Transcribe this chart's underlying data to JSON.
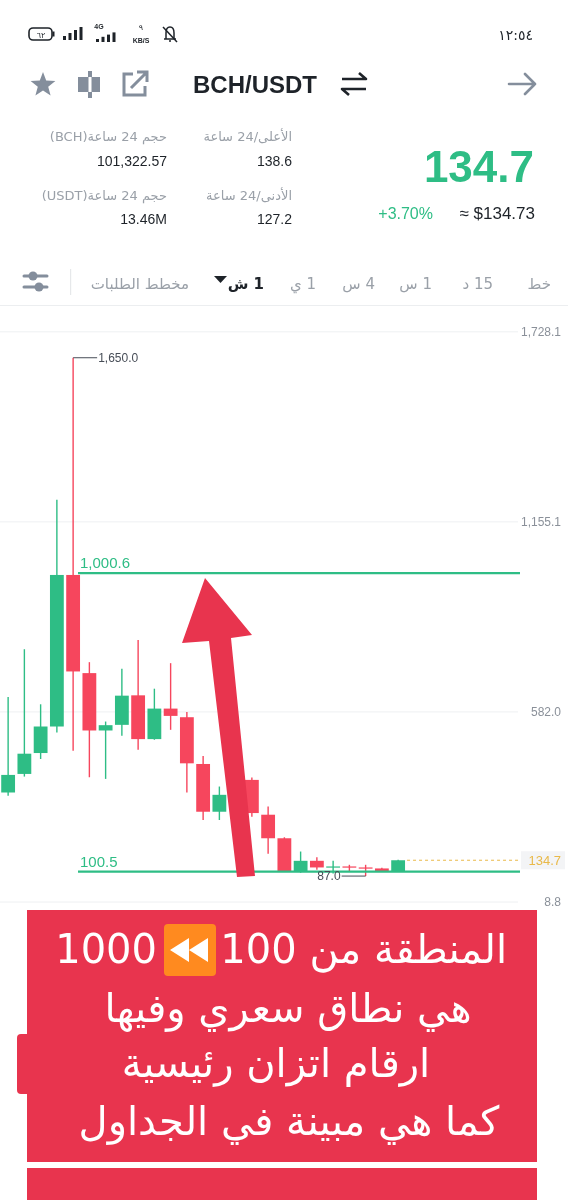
{
  "chart_data": {
    "type": "candlestick",
    "title": "BCH/USDT",
    "categories": [
      null,
      null,
      null,
      null,
      null,
      null,
      null,
      null,
      null,
      null,
      null,
      null,
      null,
      null,
      null,
      null,
      null,
      null,
      null,
      null,
      null,
      null,
      null,
      null,
      null,
      null,
      null,
      null,
      null,
      null,
      null,
      null
    ],
    "ohlc": [
      [
        339,
        627,
        329,
        392
      ],
      [
        395,
        771,
        387,
        456
      ],
      [
        458,
        605,
        440,
        538
      ],
      [
        538,
        1222,
        520,
        995
      ],
      [
        995,
        1650.0,
        465,
        704
      ],
      [
        699,
        732,
        385,
        526
      ],
      [
        526,
        553,
        380,
        542
      ],
      [
        543,
        712,
        510,
        631
      ],
      [
        632,
        799,
        468,
        500
      ],
      [
        500,
        652,
        498,
        592
      ],
      [
        592,
        729,
        528,
        570
      ],
      [
        566,
        582,
        339,
        427
      ],
      [
        425,
        449,
        256,
        281
      ],
      [
        281,
        357,
        256,
        332
      ],
      null,
      [
        377,
        384,
        266,
        277
      ],
      [
        272,
        297,
        154,
        201
      ],
      [
        201,
        204,
        100,
        101
      ],
      [
        101,
        161,
        97,
        133
      ],
      [
        133,
        144,
        106,
        113
      ],
      [
        113,
        133,
        95,
        116
      ],
      [
        116,
        121,
        100,
        113
      ],
      [
        113,
        121,
        87.0,
        110
      ],
      [
        110,
        112,
        100,
        102
      ],
      [
        102,
        136,
        100,
        134.7
      ],
      null,
      null,
      null,
      null,
      null,
      null,
      null
    ],
    "colors": [
      "#2ebd85",
      "#2ebd85",
      "#2ebd85",
      "#2ebd85",
      "#f6465d",
      "#f6465d",
      "#2ebd85",
      "#2ebd85",
      "#f6465d",
      "#2ebd85",
      "#f6465d",
      "#f6465d",
      "#f6465d",
      "#2ebd85",
      null,
      "#f6465d",
      "#f6465d",
      "#f6465d",
      "#2ebd85",
      "#f6465d",
      "#2ebd85",
      "#f6465d",
      "#f6465d",
      "#f6465d",
      "#2ebd85",
      null,
      null,
      null,
      null,
      null,
      null,
      null
    ],
    "ylim": [
      8.8,
      1800
    ],
    "yticks": [
      {
        "value": 1728.1,
        "label": "1,728.1"
      },
      {
        "value": 1155.1,
        "label": "1,155.1"
      },
      {
        "value": 582.0,
        "label": "582.0"
      },
      8.8
    ],
    "grid": "y",
    "ref_lines": [
      {
        "axis": "y",
        "value": 1000.6,
        "label": "1,000.6",
        "color": "#2ebd85"
      },
      {
        "axis": "y",
        "value": 100.5,
        "label": "100.5",
        "color": "#2ebd85"
      },
      {
        "axis": "y",
        "value": 134.7,
        "label": "134.7",
        "color": "#e9b949",
        "line_style": "dashed"
      }
    ],
    "annotations": [
      "134.7",
      "+3.70%",
      "≈ $134.73",
      "الأعلى/24 ساعة",
      "138.6",
      "الأدنى/24 ساعة",
      "127.2",
      "حجم 24 ساعة(BCH)",
      "101,322.57",
      "حجم 24 ساعة(USDT)",
      "13.46M",
      "خط",
      "15 د",
      "1 س",
      "4 س",
      "1 ي",
      "1 ش",
      "مخطط الطلبات",
      "المنطقة من 100",
      "1000",
      "هي نطاق سعري وفيها",
      "ارقام اتزان رئيسية",
      "كما هي مبينة في الجداول",
      "١٢:٥٤",
      "٦٢",
      "4G",
      "٩",
      "KB/S",
      "1,650.0",
      "87.0"
    ]
  }
}
